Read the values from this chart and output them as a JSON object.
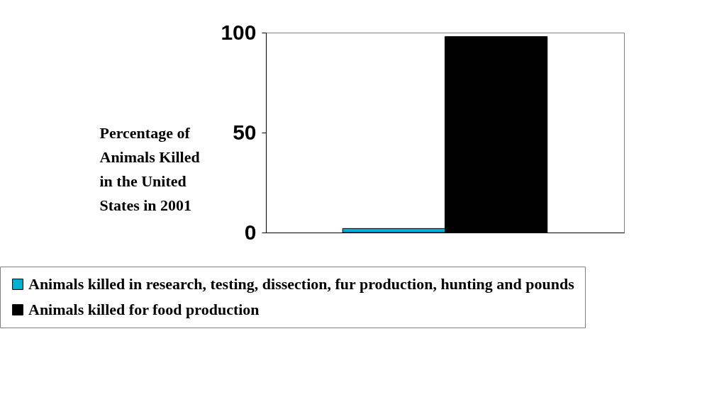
{
  "chart_data": {
    "type": "bar",
    "ylabel": "Percentage of Animals Killed in the United States in 2001",
    "categories": [
      null
    ],
    "series": [
      {
        "name": "Animals killed in research, testing, dissection, fur production, hunting and pounds",
        "color": "#00b0d0",
        "values": [
          2
        ]
      },
      {
        "name": "Animals killed for food production",
        "color": "#000000",
        "values": [
          98
        ]
      }
    ],
    "ylim": [
      0,
      100
    ],
    "yticks": [
      0,
      50,
      100
    ],
    "grid": false,
    "legend": "bottom"
  }
}
